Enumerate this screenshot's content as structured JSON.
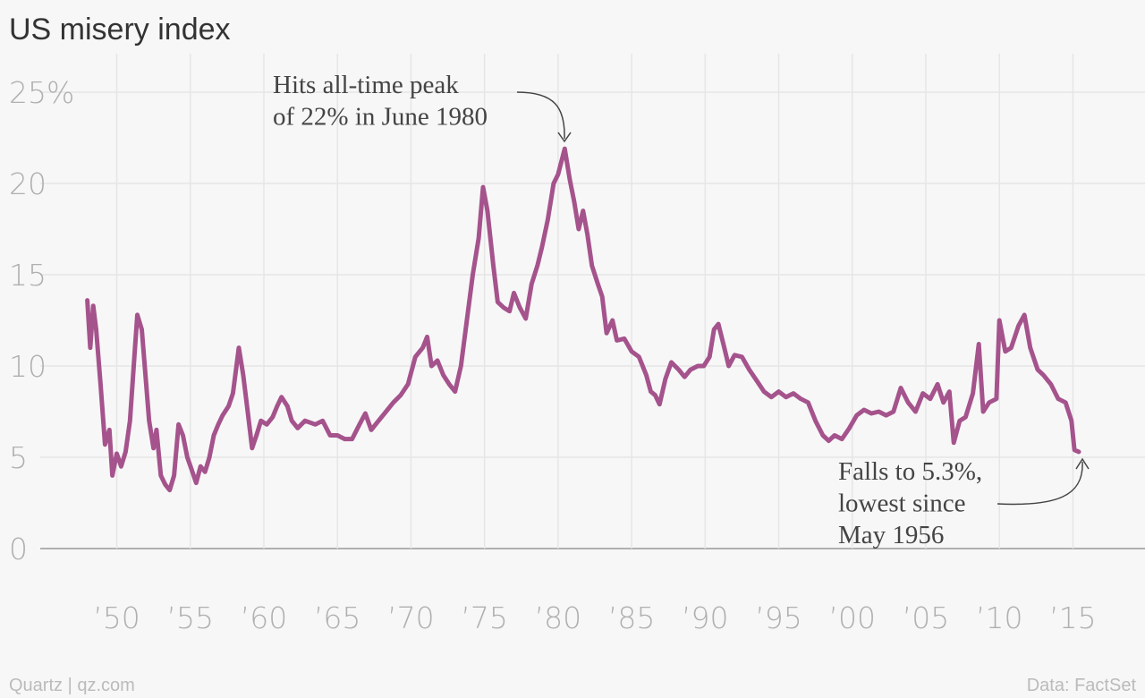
{
  "chart_data": {
    "type": "line",
    "title": "US misery index",
    "x": [
      1948.0,
      1948.2,
      1948.4,
      1948.6,
      1948.9,
      1949.2,
      1949.5,
      1949.7,
      1950.0,
      1950.3,
      1950.6,
      1950.9,
      1951.2,
      1951.4,
      1951.7,
      1951.9,
      1952.2,
      1952.5,
      1952.7,
      1953.0,
      1953.3,
      1953.6,
      1953.9,
      1954.2,
      1954.5,
      1954.8,
      1955.1,
      1955.4,
      1955.7,
      1956.0,
      1956.3,
      1956.6,
      1956.9,
      1957.2,
      1957.6,
      1957.9,
      1958.3,
      1958.6,
      1958.9,
      1959.2,
      1959.5,
      1959.8,
      1960.2,
      1960.6,
      1960.9,
      1961.2,
      1961.6,
      1961.9,
      1962.3,
      1962.8,
      1963.5,
      1964.0,
      1964.5,
      1965.0,
      1965.5,
      1966.0,
      1966.5,
      1966.9,
      1967.3,
      1967.8,
      1968.3,
      1968.8,
      1969.3,
      1969.8,
      1970.3,
      1970.8,
      1971.1,
      1971.4,
      1971.8,
      1972.2,
      1972.6,
      1973.0,
      1973.4,
      1973.8,
      1974.2,
      1974.6,
      1974.9,
      1975.2,
      1975.6,
      1975.9,
      1976.3,
      1976.7,
      1977.0,
      1977.4,
      1977.8,
      1978.2,
      1978.6,
      1978.9,
      1979.3,
      1979.7,
      1980.0,
      1980.45,
      1980.8,
      1981.1,
      1981.4,
      1981.7,
      1982.0,
      1982.3,
      1982.7,
      1983.0,
      1983.3,
      1983.7,
      1984.0,
      1984.5,
      1985.0,
      1985.5,
      1986.0,
      1986.3,
      1986.6,
      1986.9,
      1987.3,
      1987.7,
      1988.2,
      1988.6,
      1989.0,
      1989.5,
      1989.9,
      1990.3,
      1990.6,
      1990.9,
      1991.3,
      1991.6,
      1992.0,
      1992.5,
      1993.0,
      1993.5,
      1994.0,
      1994.5,
      1995.0,
      1995.5,
      1996.0,
      1996.5,
      1997.0,
      1997.5,
      1998.0,
      1998.4,
      1998.8,
      1999.3,
      1999.8,
      2000.3,
      2000.8,
      2001.3,
      2001.8,
      2002.3,
      2002.8,
      2003.3,
      2003.8,
      2004.3,
      2004.8,
      2005.3,
      2005.8,
      2006.2,
      2006.6,
      2006.9,
      2007.3,
      2007.7,
      2008.2,
      2008.6,
      2008.9,
      2009.3,
      2009.8,
      2010.0,
      2010.4,
      2010.8,
      2011.3,
      2011.7,
      2012.1,
      2012.6,
      2013.0,
      2013.5,
      2014.0,
      2014.5,
      2014.9,
      2015.1,
      2015.4
    ],
    "series": [
      {
        "name": "US misery index",
        "color": "#a5538c",
        "values": [
          13.6,
          11.0,
          13.3,
          12.0,
          9.0,
          5.7,
          6.5,
          4.0,
          5.2,
          4.5,
          5.3,
          7.0,
          10.5,
          12.8,
          12.0,
          10.0,
          7.0,
          5.5,
          6.5,
          4.0,
          3.5,
          3.2,
          4.0,
          6.8,
          6.2,
          5.0,
          4.3,
          3.6,
          4.5,
          4.2,
          5.0,
          6.2,
          6.8,
          7.3,
          7.8,
          8.5,
          11.0,
          9.5,
          7.5,
          5.5,
          6.2,
          7.0,
          6.8,
          7.2,
          7.8,
          8.3,
          7.8,
          7.0,
          6.6,
          7.0,
          6.8,
          7.0,
          6.2,
          6.2,
          6.0,
          6.0,
          6.8,
          7.4,
          6.5,
          7.0,
          7.5,
          8.0,
          8.4,
          9.0,
          10.5,
          11.0,
          11.6,
          10.0,
          10.3,
          9.5,
          9.0,
          8.6,
          10.0,
          12.5,
          15.0,
          17.0,
          19.8,
          18.5,
          15.5,
          13.5,
          13.2,
          13.0,
          14.0,
          13.2,
          12.6,
          14.5,
          15.5,
          16.5,
          18.0,
          20.0,
          20.5,
          21.9,
          20.2,
          19.0,
          17.5,
          18.5,
          17.2,
          15.5,
          14.5,
          13.8,
          11.8,
          12.5,
          11.4,
          11.5,
          10.8,
          10.5,
          9.5,
          8.6,
          8.4,
          7.9,
          9.3,
          10.2,
          9.8,
          9.4,
          9.8,
          10.0,
          10.0,
          10.5,
          12.0,
          12.3,
          11.0,
          10.0,
          10.6,
          10.5,
          9.8,
          9.2,
          8.6,
          8.3,
          8.6,
          8.3,
          8.5,
          8.2,
          8.0,
          7.0,
          6.2,
          5.9,
          6.2,
          6.0,
          6.6,
          7.3,
          7.6,
          7.4,
          7.5,
          7.3,
          7.5,
          8.8,
          8.0,
          7.5,
          8.5,
          8.2,
          9.0,
          8.0,
          8.6,
          5.8,
          7.0,
          7.2,
          8.5,
          11.2,
          7.5,
          8.0,
          8.2,
          12.5,
          10.8,
          11.0,
          12.2,
          12.8,
          11.0,
          9.8,
          9.5,
          9.0,
          8.2,
          8.0,
          7.0,
          5.4,
          5.3
        ]
      }
    ],
    "xlim": [
      1944.8,
      2019.9
    ],
    "ylim": [
      0,
      25
    ],
    "xticks": [
      {
        "value": 1950,
        "label": "’50"
      },
      {
        "value": 1955,
        "label": "’55"
      },
      {
        "value": 1960,
        "label": "’60"
      },
      {
        "value": 1965,
        "label": "’65"
      },
      {
        "value": 1970,
        "label": "’70"
      },
      {
        "value": 1975,
        "label": "’75"
      },
      {
        "value": 1980,
        "label": "’80"
      },
      {
        "value": 1985,
        "label": "’85"
      },
      {
        "value": 1990,
        "label": "’90"
      },
      {
        "value": 1995,
        "label": "’95"
      },
      {
        "value": 2000,
        "label": "’00"
      },
      {
        "value": 2005,
        "label": "’05"
      },
      {
        "value": 2010,
        "label": "’10"
      },
      {
        "value": 2015,
        "label": "’15"
      }
    ],
    "yticks": [
      0,
      5,
      10,
      15,
      20,
      {
        "value": 25,
        "label": "25%"
      }
    ],
    "grid": true,
    "annotations": [
      {
        "lines": [
          "Hits all-time peak",
          "of 22% in June 1980"
        ]
      },
      {
        "lines": [
          "Falls to 5.3%,",
          "lowest since",
          "May 1956"
        ]
      }
    ],
    "source": "Data: FactSet",
    "credit": "Quartz | qz.com"
  }
}
